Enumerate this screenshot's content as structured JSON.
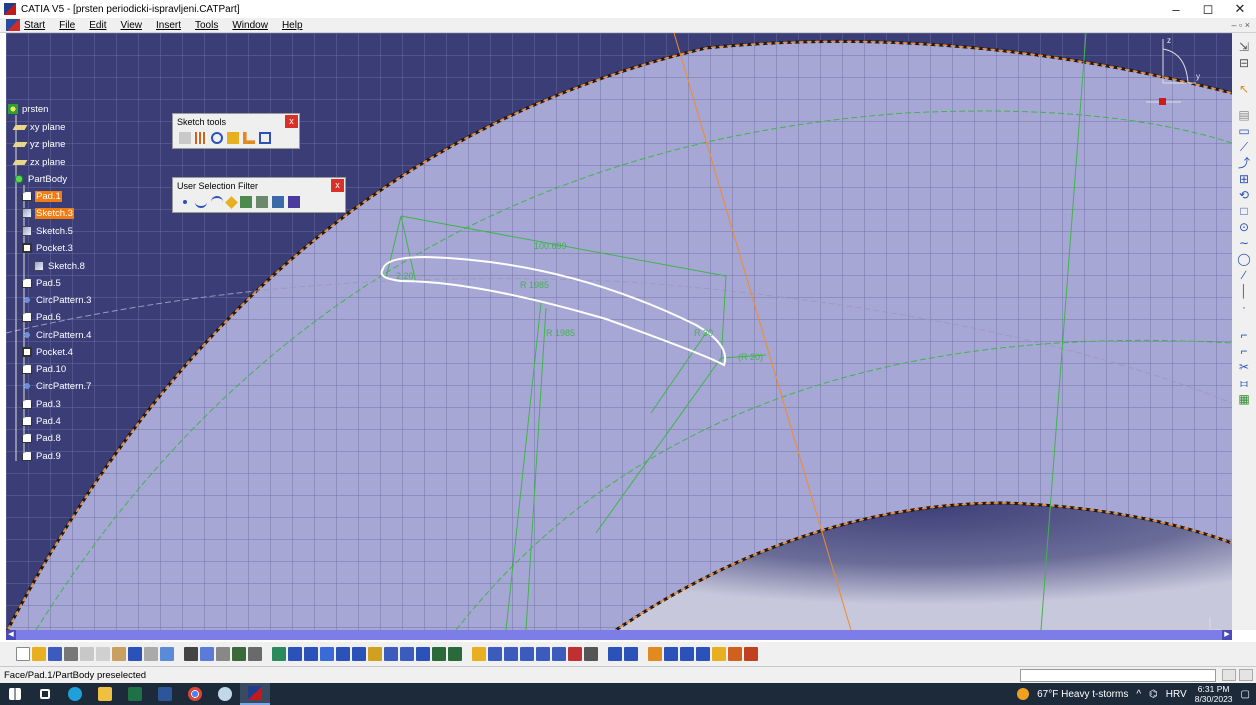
{
  "window": {
    "title": "CATIA V5 - [prsten periodicki-ispravljeni.CATPart]",
    "controls": [
      "–",
      "◻",
      "✕"
    ]
  },
  "menu": {
    "items": [
      {
        "name": "menu-start",
        "label": "Start"
      },
      {
        "name": "menu-file",
        "label": "File"
      },
      {
        "name": "menu-edit",
        "label": "Edit"
      },
      {
        "name": "menu-view",
        "label": "View"
      },
      {
        "name": "menu-insert",
        "label": "Insert"
      },
      {
        "name": "menu-tools",
        "label": "Tools"
      },
      {
        "name": "menu-window",
        "label": "Window"
      },
      {
        "name": "menu-help",
        "label": "Help"
      }
    ],
    "mdi_controls": "– ▫ ×"
  },
  "tree": {
    "root": "prsten",
    "nodes": [
      {
        "label": "xy plane",
        "icon": "plane-icon",
        "selected": false
      },
      {
        "label": "yz plane",
        "icon": "plane-icon",
        "selected": false
      },
      {
        "label": "zx plane",
        "icon": "plane-icon",
        "selected": false
      },
      {
        "label": "PartBody",
        "icon": "partbody-icon",
        "selected": false
      },
      {
        "label": "Pad.1",
        "icon": "pad-icon",
        "selected": true
      },
      {
        "label": "Sketch.3",
        "icon": "sketch-icon",
        "selected": true
      },
      {
        "label": "Sketch.5",
        "icon": "sketch-icon",
        "selected": false
      },
      {
        "label": "Pocket.3",
        "icon": "pocket-icon",
        "selected": false
      },
      {
        "label": "Sketch.8",
        "icon": "sketch-icon",
        "selected": false
      },
      {
        "label": "Pad.5",
        "icon": "pad-icon",
        "selected": false
      },
      {
        "label": "CircPattern.3",
        "icon": "pattern-icon",
        "selected": false
      },
      {
        "label": "Pad.6",
        "icon": "pad-icon",
        "selected": false
      },
      {
        "label": "CircPattern.4",
        "icon": "pattern-icon",
        "selected": false
      },
      {
        "label": "Pocket.4",
        "icon": "pocket-icon",
        "selected": false
      },
      {
        "label": "Pad.10",
        "icon": "pad-icon",
        "selected": false
      },
      {
        "label": "CircPattern.7",
        "icon": "pattern-icon",
        "selected": false
      },
      {
        "label": "Pad.3",
        "icon": "pad-icon",
        "selected": false
      },
      {
        "label": "Pad.4",
        "icon": "pad-icon",
        "selected": false
      },
      {
        "label": "Pad.8",
        "icon": "pad-icon",
        "selected": false
      },
      {
        "label": "Pad.9",
        "icon": "pad-icon",
        "selected": false
      }
    ]
  },
  "sketch_tools": {
    "title": "Sketch tools",
    "close": "x"
  },
  "selection_filter": {
    "title": "User Selection Filter",
    "close": "x"
  },
  "dimensions": {
    "d1": "100.699",
    "d2": "R 1985",
    "d3": "R 1985",
    "d4": "2.20",
    "d5": "R 30",
    "d6": "(R 20)"
  },
  "compass": {
    "z": "z",
    "y": "y"
  },
  "colors": {
    "viewport_bg": "#3b3d77",
    "part_face": "#a7a7d6",
    "grid": "#6b6fa0",
    "construction": "#3fb44a",
    "edge_highlight": "#f08a2a",
    "profile": "#ffffff",
    "selected": "#f07c12"
  },
  "status": {
    "text": "Face/Pad.1/PartBody preselected"
  },
  "taskbar": {
    "weather": "67°F  Heavy t-storms",
    "language": "HRV",
    "time": "6:31 PM",
    "date": "8/30/2023"
  }
}
